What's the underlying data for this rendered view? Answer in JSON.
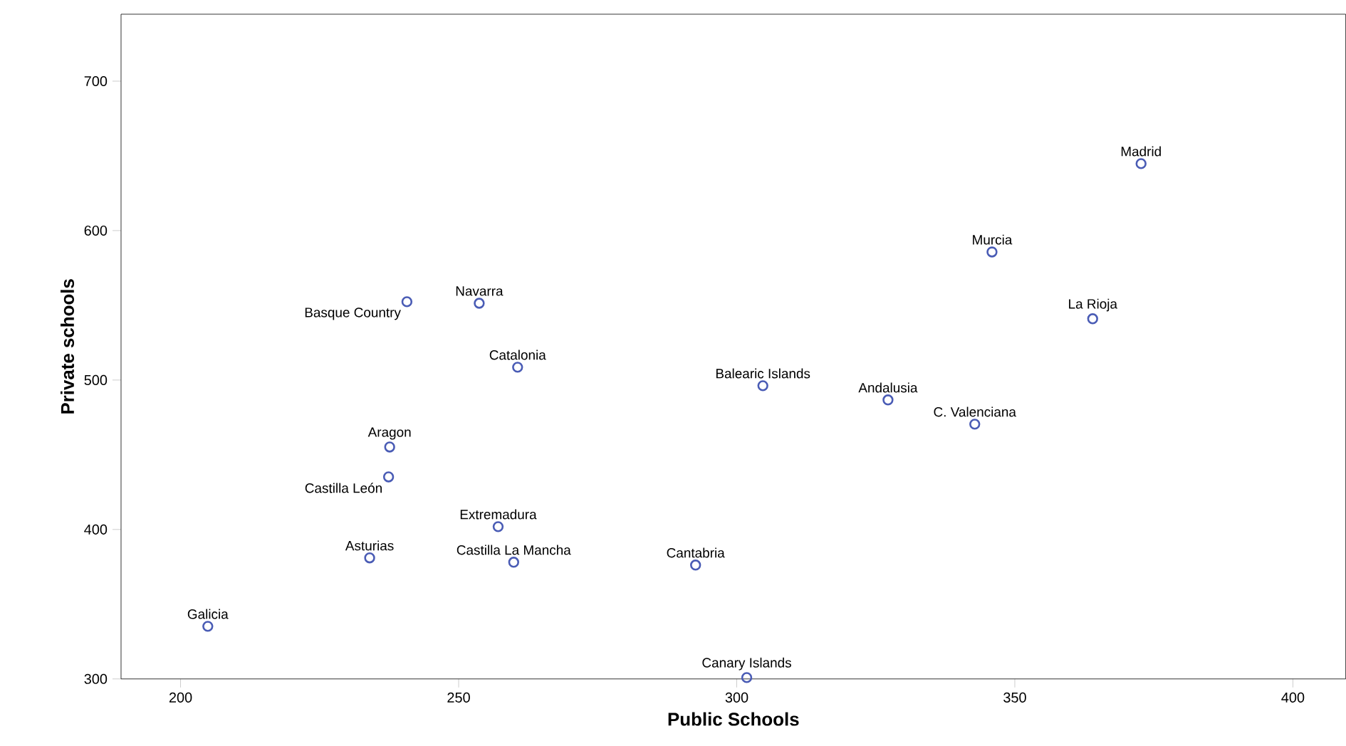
{
  "chart_data": {
    "type": "scatter",
    "xlabel": "Public Schools",
    "ylabel": "Private schools",
    "x": [
      372.7,
      345.9,
      364.0,
      240.7,
      253.7,
      260.6,
      304.7,
      327.2,
      342.8,
      237.6,
      237.4,
      257.1,
      234.0,
      259.9,
      292.6,
      204.9,
      301.8
    ],
    "values": [
      644.8,
      585.7,
      541.0,
      552.4,
      551.4,
      508.6,
      496.2,
      486.7,
      470.5,
      455.2,
      435.2,
      401.9,
      381.0,
      378.1,
      376.2,
      335.2,
      300.9
    ],
    "color": "#4a5cb5",
    "marker": "circle",
    "legend": false,
    "grid": false,
    "xlim": [
      189.3,
      409.5
    ],
    "ylim": [
      300,
      744.8
    ],
    "xticks": [
      200,
      250,
      300,
      350,
      400
    ],
    "yticks": [
      300,
      400,
      500,
      600,
      700
    ],
    "annotations": [
      {
        "text": "Madrid",
        "x": 372.7,
        "y": 644.8
      },
      {
        "text": "Murcia",
        "x": 345.9,
        "y": 585.7
      },
      {
        "text": "La Rioja",
        "x": 364.0,
        "y": 541.0
      },
      {
        "text": "Basque Country",
        "x": 240.7,
        "y": 552.4
      },
      {
        "text": "Navarra",
        "x": 253.7,
        "y": 551.4
      },
      {
        "text": "Catalonia",
        "x": 260.6,
        "y": 508.6
      },
      {
        "text": "Balearic Islands",
        "x": 304.7,
        "y": 496.2
      },
      {
        "text": "Andalusia",
        "x": 327.2,
        "y": 486.7
      },
      {
        "text": "C. Valenciana",
        "x": 342.8,
        "y": 470.5
      },
      {
        "text": "Aragon",
        "x": 237.6,
        "y": 455.2
      },
      {
        "text": "Castilla León",
        "x": 237.4,
        "y": 435.2
      },
      {
        "text": "Extremadura",
        "x": 257.1,
        "y": 401.9
      },
      {
        "text": "Asturias",
        "x": 234.0,
        "y": 381.0
      },
      {
        "text": "Castilla La Mancha",
        "x": 259.9,
        "y": 378.1
      },
      {
        "text": "Cantabria",
        "x": 292.6,
        "y": 376.2
      },
      {
        "text": "Galicia",
        "x": 204.9,
        "y": 335.2
      },
      {
        "text": "Canary Islands",
        "x": 301.8,
        "y": 300.9
      }
    ]
  }
}
